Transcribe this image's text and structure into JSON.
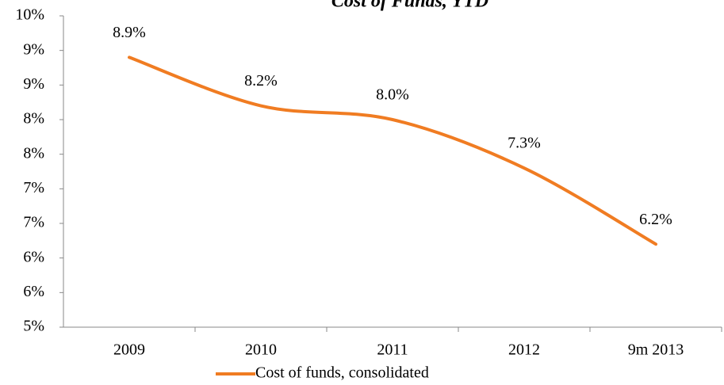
{
  "chart_data": {
    "type": "line",
    "title": "Cost of Funds, YTD",
    "categories": [
      "2009",
      "2010",
      "2011",
      "2012",
      "9m 2013"
    ],
    "series": [
      {
        "name": "Cost of funds, consolidated",
        "color": "#f07c22",
        "values": [
          8.9,
          8.2,
          8.0,
          7.3,
          6.2
        ],
        "value_labels": [
          "8.9%",
          "8.2%",
          "8.0%",
          "7.3%",
          "6.2%"
        ]
      }
    ],
    "ylim": [
      5.0,
      9.5
    ],
    "yticks": [
      {
        "value": 5.0,
        "label": "5%"
      },
      {
        "value": 5.5,
        "label": "6%"
      },
      {
        "value": 6.0,
        "label": "6%"
      },
      {
        "value": 6.5,
        "label": "7%"
      },
      {
        "value": 7.0,
        "label": "7%"
      },
      {
        "value": 7.5,
        "label": "8%"
      },
      {
        "value": 8.0,
        "label": "8%"
      },
      {
        "value": 8.5,
        "label": "9%"
      },
      {
        "value": 9.0,
        "label": "9%"
      },
      {
        "value": 9.5,
        "label": "10%"
      }
    ],
    "grid": false,
    "legend": "bottom",
    "smooth": true
  }
}
